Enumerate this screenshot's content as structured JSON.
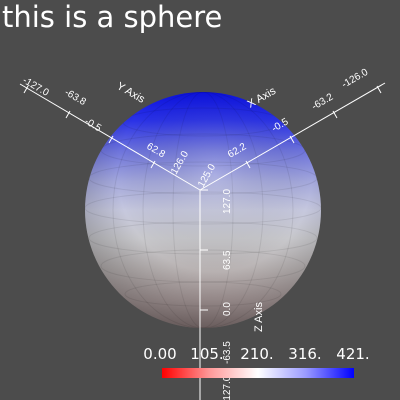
{
  "title": "this is a sphere",
  "axes": {
    "x_axis": {
      "name": "X Axis",
      "ticks": [
        "-126.0",
        "-63.2",
        "-0.5",
        "62.2",
        "125.0"
      ]
    },
    "y_axis": {
      "name": "Y Axis",
      "ticks": [
        "-127.0",
        "-63.8",
        "-0.5",
        "62.8",
        "126.0"
      ]
    },
    "z_axis": {
      "name": "Z Axis",
      "ticks": [
        "127.0",
        "63.5",
        "0.0",
        "-63.5",
        "-127.0"
      ]
    }
  },
  "scalar_bar": {
    "labels": [
      "0.00",
      "105.",
      "210.",
      "316.",
      "421."
    ],
    "colors": {
      "min": "#ff0000",
      "mid": "#ffffff",
      "max": "#0000ff"
    }
  },
  "colors": {
    "background": "#4c4c4c",
    "text": "#ffffff"
  }
}
